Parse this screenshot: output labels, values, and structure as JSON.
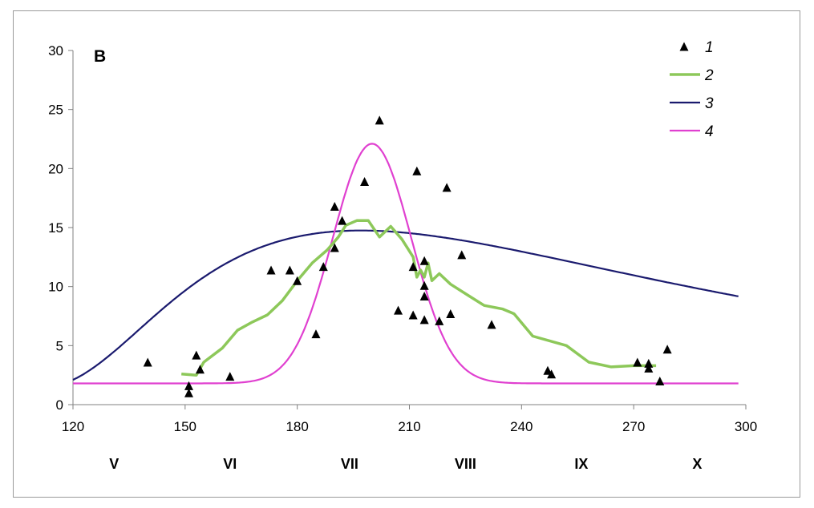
{
  "panel_label": "B",
  "chart_data": {
    "type": "scatter",
    "xlim": [
      120,
      300
    ],
    "ylim": [
      0,
      30
    ],
    "x_ticks": [
      "120",
      "150",
      "180",
      "210",
      "240",
      "270",
      "300"
    ],
    "y_ticks": [
      "0",
      "5",
      "10",
      "15",
      "20",
      "25",
      "30"
    ],
    "month_labels": [
      {
        "label": "V",
        "x": 131
      },
      {
        "label": "VI",
        "x": 162
      },
      {
        "label": "VII",
        "x": 194
      },
      {
        "label": "VIII",
        "x": 225
      },
      {
        "label": "IX",
        "x": 256
      },
      {
        "label": "X",
        "x": 287
      }
    ],
    "grid": false,
    "legend_position": "top-right",
    "series": [
      {
        "name": "1",
        "kind": "scatter",
        "color": "#000000",
        "points": [
          [
            140,
            3.6
          ],
          [
            151,
            1.6
          ],
          [
            151,
            1.0
          ],
          [
            153,
            4.2
          ],
          [
            154,
            3.0
          ],
          [
            162,
            2.4
          ],
          [
            173,
            11.4
          ],
          [
            178,
            11.4
          ],
          [
            180,
            10.5
          ],
          [
            185,
            6.0
          ],
          [
            187,
            11.7
          ],
          [
            190,
            13.3
          ],
          [
            190,
            16.8
          ],
          [
            192,
            15.6
          ],
          [
            198,
            18.9
          ],
          [
            202,
            24.1
          ],
          [
            207,
            8.0
          ],
          [
            211,
            11.7
          ],
          [
            211,
            7.6
          ],
          [
            212,
            19.8
          ],
          [
            214,
            12.2
          ],
          [
            214,
            10.1
          ],
          [
            214,
            9.2
          ],
          [
            214,
            7.2
          ],
          [
            218,
            7.1
          ],
          [
            220,
            18.4
          ],
          [
            221,
            7.7
          ],
          [
            224,
            12.7
          ],
          [
            232,
            6.8
          ],
          [
            247,
            2.9
          ],
          [
            248,
            2.6
          ],
          [
            271,
            3.6
          ],
          [
            274,
            3.1
          ],
          [
            274,
            3.5
          ],
          [
            277,
            2.0
          ],
          [
            279,
            4.7
          ]
        ]
      },
      {
        "name": "2",
        "kind": "line",
        "color": "#8dc85a",
        "points": [
          [
            149,
            2.6
          ],
          [
            153,
            2.5
          ],
          [
            155,
            3.6
          ],
          [
            160,
            4.8
          ],
          [
            164,
            6.3
          ],
          [
            168,
            7.0
          ],
          [
            172,
            7.6
          ],
          [
            176,
            8.8
          ],
          [
            180,
            10.5
          ],
          [
            184,
            12.0
          ],
          [
            188,
            13.1
          ],
          [
            191,
            14.2
          ],
          [
            193,
            15.2
          ],
          [
            196,
            15.6
          ],
          [
            199,
            15.6
          ],
          [
            202,
            14.2
          ],
          [
            205,
            15.1
          ],
          [
            208,
            14.0
          ],
          [
            211,
            12.5
          ],
          [
            212,
            10.8
          ],
          [
            213,
            11.4
          ],
          [
            214,
            10.8
          ],
          [
            215,
            12.0
          ],
          [
            216,
            10.5
          ],
          [
            218,
            11.1
          ],
          [
            221,
            10.2
          ],
          [
            226,
            9.2
          ],
          [
            230,
            8.4
          ],
          [
            235,
            8.1
          ],
          [
            238,
            7.7
          ],
          [
            243,
            5.8
          ],
          [
            252,
            5.0
          ],
          [
            258,
            3.6
          ],
          [
            264,
            3.2
          ],
          [
            270,
            3.3
          ],
          [
            276,
            3.3
          ]
        ]
      },
      {
        "name": "3",
        "kind": "line",
        "color": "#1a1a6e",
        "model": {
          "type": "lognormal",
          "baseline": 1.3,
          "amplitude": 13.45,
          "x0": 102,
          "mode": 197,
          "sigma": 0.7
        }
      },
      {
        "name": "4",
        "kind": "line",
        "color": "#e040d0",
        "model": {
          "type": "gaussian",
          "baseline": 1.8,
          "amplitude": 20.3,
          "mean": 200,
          "sd": 10.5
        }
      }
    ]
  }
}
